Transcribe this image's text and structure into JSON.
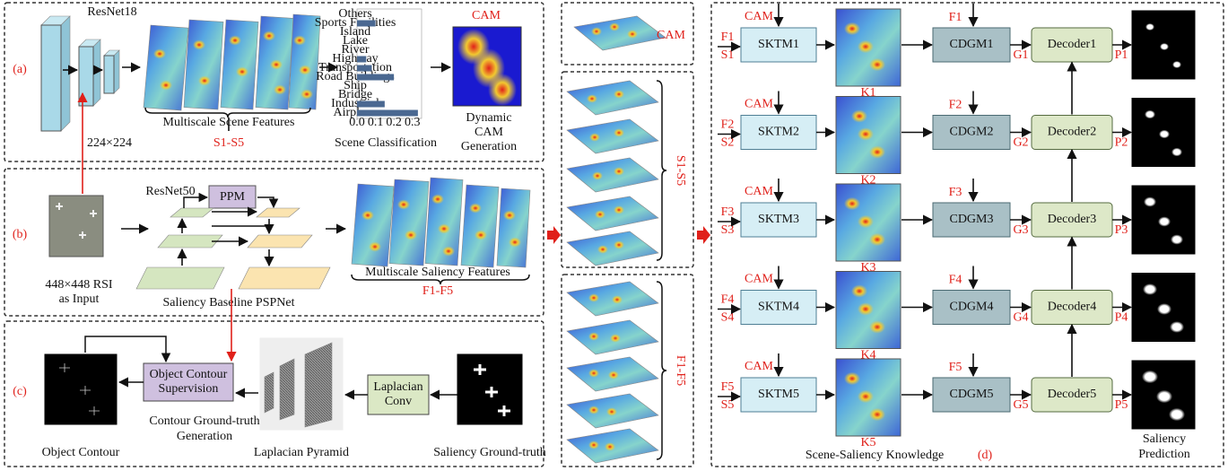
{
  "panel_a": {
    "label": "(a)",
    "backbone": "ResNet18",
    "input_size": "224×224",
    "features": "Multiscale Scene Features",
    "features_id": "S1-S5",
    "classification": "Scene Classification",
    "cam": "CAM",
    "cam_generation": [
      "Dynamic",
      "CAM",
      "Generation"
    ],
    "scene_chart": {
      "type": "bar",
      "categories": [
        "Others",
        "Sports Facilities",
        "Island",
        "Lake",
        "River",
        "Highway",
        "Transportation",
        "Road Buildings",
        "Ship",
        "Bridge",
        "Industrial",
        "Airplane"
      ],
      "values": [
        0,
        0.1,
        0,
        0,
        0,
        0.05,
        0.08,
        0.2,
        0,
        0,
        0.15,
        0.33
      ],
      "color": "#4a6891",
      "xlim": [
        0,
        0.35
      ],
      "xticks": [
        {
          "value": 0,
          "label": "0.0"
        },
        {
          "value": 0.1,
          "label": "0.1"
        },
        {
          "value": 0.2,
          "label": "0.2"
        },
        {
          "value": 0.3,
          "label": "0.3"
        }
      ]
    }
  },
  "panel_b": {
    "label": "(b)",
    "backbone": "ResNet50",
    "ppm": "PPM",
    "input": [
      "448×448 RSI",
      "as Input"
    ],
    "baseline": "Saliency Baseline PSPNet",
    "features": "Multiscale Saliency Features",
    "features_id": "F1-F5"
  },
  "panel_c": {
    "label": "(c)",
    "supervision": [
      "Object Contour",
      "Supervision"
    ],
    "conv": [
      "Laplacian",
      "Conv"
    ],
    "generation": [
      "Contour Ground-truth",
      "Generation"
    ],
    "contour": "Object Contour",
    "pyramid": "Laplacian Pyramid",
    "ground_truth": "Saliency Ground-truth"
  },
  "middle": {
    "cam": "CAM",
    "scene_features": "S1-S5",
    "saliency_features": "F1-F5"
  },
  "panel_d": {
    "label": "(d)",
    "knowledge": "Scene-Saliency Knowledge",
    "prediction": [
      "Saliency",
      "Prediction"
    ],
    "rows": [
      {
        "cam": "CAM",
        "f": "F1",
        "s": "S1",
        "sktm": "SKTM1",
        "k": "K1",
        "f_cdgm": "F1",
        "cdgm": "CDGM1",
        "g": "G1",
        "decoder": "Decoder1",
        "p": "P1"
      },
      {
        "cam": "CAM",
        "f": "F2",
        "s": "S2",
        "sktm": "SKTM2",
        "k": "K2",
        "f_cdgm": "F2",
        "cdgm": "CDGM2",
        "g": "G2",
        "decoder": "Decoder2",
        "p": "P2"
      },
      {
        "cam": "CAM",
        "f": "F3",
        "s": "S3",
        "sktm": "SKTM3",
        "k": "K3",
        "f_cdgm": "F3",
        "cdgm": "CDGM3",
        "g": "G3",
        "decoder": "Decoder3",
        "p": "P3"
      },
      {
        "cam": "CAM",
        "f": "F4",
        "s": "S4",
        "sktm": "SKTM4",
        "k": "K4",
        "f_cdgm": "F4",
        "cdgm": "CDGM4",
        "g": "G4",
        "decoder": "Decoder4",
        "p": "P4"
      },
      {
        "cam": "CAM",
        "f": "F5",
        "s": "S5",
        "sktm": "SKTM5",
        "k": "K5",
        "f_cdgm": "F5",
        "cdgm": "CDGM5",
        "g": "G5",
        "decoder": "Decoder5",
        "p": "P5"
      }
    ]
  }
}
